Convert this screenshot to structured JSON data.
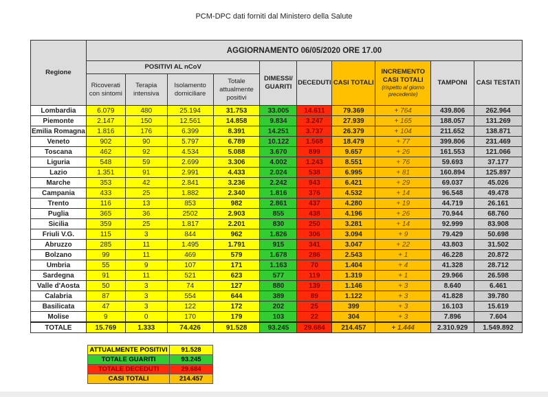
{
  "page_title": "PCM-DPC dati forniti dal Ministero della Salute",
  "header": {
    "update": "AGGIORNAMENTO 06/05/2020 ORE 17.00",
    "regione": "Regione",
    "positivi": "POSITIVI AL nCoV",
    "ricoverati": "Ricoverati con sintomi",
    "terapia": "Terapia intensiva",
    "isolamento": "Isolamento domiciliare",
    "totale_pos": "Totale attualmente positivi",
    "dimessi": "DIMESSI/ GUARITI",
    "deceduti": "DECEDUTI",
    "casi_totali": "CASI TOTALI",
    "incremento": "INCREMENTO CASI TOTALI",
    "incremento_note": "(rispetto al giorno precedente)",
    "tamponi": "TAMPONI",
    "casi_testati": "CASI TESTATI"
  },
  "rows": [
    [
      "Lombardia",
      "6.079",
      "480",
      "25.194",
      "31.753",
      "33.005",
      "14.611",
      "79.369",
      "+ 764",
      "439.806",
      "262.964"
    ],
    [
      "Piemonte",
      "2.147",
      "150",
      "12.561",
      "14.858",
      "9.834",
      "3.247",
      "27.939",
      "+ 165",
      "188.057",
      "131.269"
    ],
    [
      "Emilia Romagna",
      "1.816",
      "176",
      "6.399",
      "8.391",
      "14.251",
      "3.737",
      "26.379",
      "+ 104",
      "211.652",
      "138.871"
    ],
    [
      "Veneto",
      "902",
      "90",
      "5.797",
      "6.789",
      "10.122",
      "1.568",
      "18.479",
      "+ 77",
      "399.806",
      "231.469"
    ],
    [
      "Toscana",
      "462",
      "92",
      "4.534",
      "5.088",
      "3.670",
      "899",
      "9.657",
      "+ 26",
      "161.553",
      "121.066"
    ],
    [
      "Liguria",
      "548",
      "59",
      "2.699",
      "3.306",
      "4.002",
      "1.243",
      "8.551",
      "+ 76",
      "59.693",
      "37.177"
    ],
    [
      "Lazio",
      "1.351",
      "91",
      "2.991",
      "4.433",
      "2.024",
      "538",
      "6.995",
      "+ 81",
      "160.894",
      "125.897"
    ],
    [
      "Marche",
      "353",
      "42",
      "2.841",
      "3.236",
      "2.242",
      "943",
      "6.421",
      "+ 29",
      "69.037",
      "45.026"
    ],
    [
      "Campania",
      "433",
      "25",
      "1.882",
      "2.340",
      "1.816",
      "376",
      "4.532",
      "+ 14",
      "96.548",
      "49.478"
    ],
    [
      "Trento",
      "116",
      "13",
      "853",
      "982",
      "2.861",
      "437",
      "4.280",
      "+ 19",
      "44.719",
      "26.161"
    ],
    [
      "Puglia",
      "365",
      "36",
      "2502",
      "2.903",
      "855",
      "438",
      "4.196",
      "+ 26",
      "70.944",
      "68.760"
    ],
    [
      "Sicilia",
      "359",
      "25",
      "1.817",
      "2.201",
      "830",
      "250",
      "3.281",
      "+ 14",
      "92.999",
      "83.908"
    ],
    [
      "Friuli V.G.",
      "115",
      "3",
      "844",
      "962",
      "1.826",
      "306",
      "3.094",
      "+ 9",
      "79.429",
      "50.698"
    ],
    [
      "Abruzzo",
      "285",
      "11",
      "1.495",
      "1.791",
      "915",
      "341",
      "3.047",
      "+ 22",
      "43.803",
      "31.502"
    ],
    [
      "Bolzano",
      "99",
      "11",
      "469",
      "579",
      "1.678",
      "286",
      "2.543",
      "+ 1",
      "46.228",
      "20.872"
    ],
    [
      "Umbria",
      "55",
      "9",
      "107",
      "171",
      "1.163",
      "70",
      "1.404",
      "+ 4",
      "41.328",
      "28.712"
    ],
    [
      "Sardegna",
      "91",
      "11",
      "521",
      "623",
      "577",
      "119",
      "1.319",
      "+ 1",
      "29.966",
      "26.598"
    ],
    [
      "Valle d'Aosta",
      "50",
      "3",
      "74",
      "127",
      "880",
      "139",
      "1.146",
      "+ 3",
      "8.640",
      "6.461"
    ],
    [
      "Calabria",
      "87",
      "3",
      "554",
      "644",
      "389",
      "89",
      "1.122",
      "+ 3",
      "41.828",
      "39.780"
    ],
    [
      "Basilicata",
      "47",
      "3",
      "122",
      "172",
      "202",
      "25",
      "399",
      "+ 3",
      "16.103",
      "15.619"
    ],
    [
      "Molise",
      "9",
      "0",
      "170",
      "179",
      "103",
      "22",
      "304",
      "+ 3",
      "7.896",
      "7.604"
    ]
  ],
  "total": [
    "TOTALE",
    "15.769",
    "1.333",
    "74.426",
    "91.528",
    "93.245",
    "29.684",
    "214.457",
    "+ 1.444",
    "2.310.929",
    "1.549.892"
  ],
  "summary": [
    {
      "label": "ATTUALMENTE POSITIVI",
      "value": "91.528",
      "color": "#ffff00"
    },
    {
      "label": "TOTALE GUARITI",
      "value": "93.245",
      "color": "#33cc33"
    },
    {
      "label": "TOTALE DECEDUTI",
      "value": "29.684",
      "color": "#ff2a0a"
    },
    {
      "label": "CASI TOTALI",
      "value": "214.457",
      "color": "#ffc000"
    }
  ]
}
